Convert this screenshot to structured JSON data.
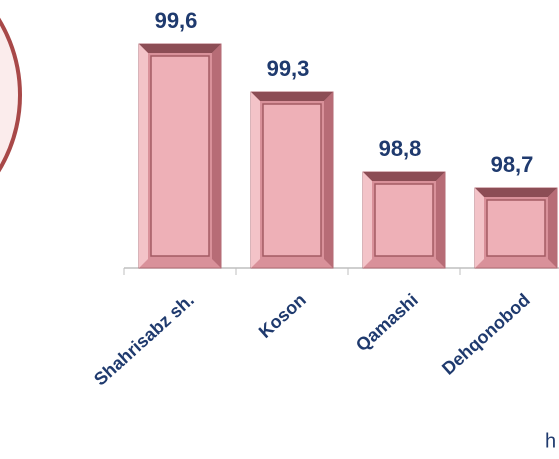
{
  "chart_data": {
    "type": "bar",
    "categories": [
      "Shahrisabz sh.",
      "Koson",
      "Qamashi",
      "Dehqonobod"
    ],
    "values": [
      99.6,
      99.3,
      98.8,
      98.7
    ],
    "value_labels": [
      "99,6",
      "99,3",
      "98,8",
      "98,7"
    ],
    "color": "#d9919a",
    "ylim": [
      98.2,
      99.7
    ],
    "annotation": "h"
  }
}
